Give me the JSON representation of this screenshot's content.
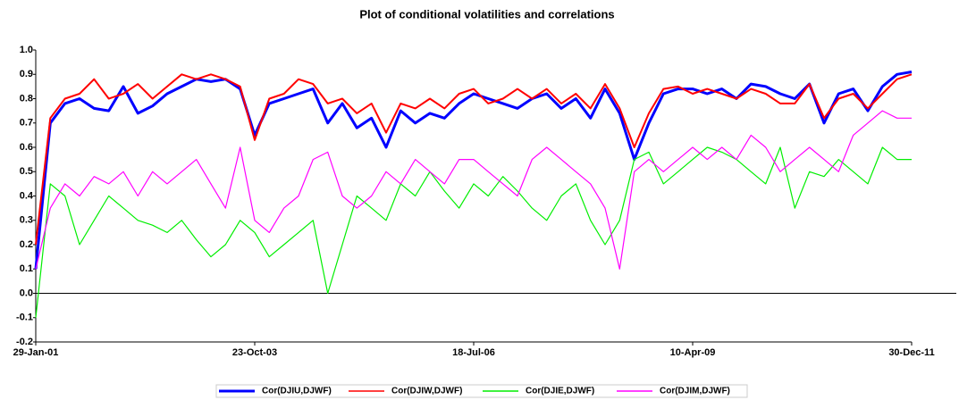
{
  "chart_data": {
    "type": "line",
    "title": "Plot of conditional volatilities and correlations",
    "x": [
      "29-Jan-01",
      null,
      null,
      null,
      null,
      null,
      null,
      null,
      null,
      null,
      null,
      null,
      null,
      null,
      null,
      "23-Oct-03",
      null,
      null,
      null,
      null,
      null,
      null,
      null,
      null,
      null,
      null,
      null,
      null,
      null,
      null,
      "18-Jul-06",
      null,
      null,
      null,
      null,
      null,
      null,
      null,
      null,
      null,
      null,
      null,
      null,
      null,
      null,
      "10-Apr-09",
      null,
      null,
      null,
      null,
      null,
      null,
      null,
      null,
      null,
      null,
      null,
      null,
      null,
      null,
      "30-Dec-11"
    ],
    "ylim": [
      -0.2,
      1.0
    ],
    "yticks": [
      -0.2,
      -0.1,
      {
        "value": 0,
        "label": "0.0"
      },
      0.1,
      0.2,
      0.3,
      0.4,
      0.5,
      0.6,
      0.7,
      0.8,
      0.9,
      {
        "value": 1,
        "label": "1.0"
      }
    ],
    "series": [
      {
        "name": "Cor(DJIU,DJWF)",
        "color": "#0000ff",
        "values": [
          0.1,
          0.7,
          0.78,
          0.8,
          0.76,
          0.75,
          0.85,
          0.74,
          0.77,
          0.82,
          0.85,
          0.88,
          0.87,
          0.88,
          0.84,
          0.65,
          0.78,
          0.8,
          0.82,
          0.84,
          0.7,
          0.78,
          0.68,
          0.72,
          0.6,
          0.75,
          0.7,
          0.74,
          0.72,
          0.78,
          0.82,
          0.8,
          0.78,
          0.76,
          0.8,
          0.82,
          0.76,
          0.8,
          0.72,
          0.84,
          0.74,
          0.55,
          0.7,
          0.82,
          0.84,
          0.84,
          0.82,
          0.84,
          0.8,
          0.86,
          0.85,
          0.82,
          0.8,
          0.86,
          0.7,
          0.82,
          0.84,
          0.75,
          0.85,
          0.9,
          0.91
        ]
      },
      {
        "name": "Cor(DJIW,DJWF)",
        "color": "#ff0000",
        "values": [
          0.2,
          0.72,
          0.8,
          0.82,
          0.88,
          0.8,
          0.82,
          0.86,
          0.8,
          0.85,
          0.9,
          0.88,
          0.9,
          0.88,
          0.85,
          0.63,
          0.8,
          0.82,
          0.88,
          0.86,
          0.78,
          0.8,
          0.74,
          0.78,
          0.66,
          0.78,
          0.76,
          0.8,
          0.76,
          0.82,
          0.84,
          0.78,
          0.8,
          0.84,
          0.8,
          0.84,
          0.78,
          0.82,
          0.76,
          0.86,
          0.76,
          0.6,
          0.74,
          0.84,
          0.85,
          0.82,
          0.84,
          0.82,
          0.8,
          0.84,
          0.82,
          0.78,
          0.78,
          0.86,
          0.72,
          0.8,
          0.82,
          0.76,
          0.82,
          0.88,
          0.9
        ]
      },
      {
        "name": "Cor(DJIE,DJWF)",
        "color": "#00ee00",
        "values": [
          -0.1,
          0.45,
          0.4,
          0.2,
          0.3,
          0.4,
          0.35,
          0.3,
          0.28,
          0.25,
          0.3,
          0.22,
          0.15,
          0.2,
          0.3,
          0.25,
          0.15,
          0.2,
          0.25,
          0.3,
          0.0,
          0.2,
          0.4,
          0.35,
          0.3,
          0.45,
          0.4,
          0.5,
          0.42,
          0.35,
          0.45,
          0.4,
          0.48,
          0.42,
          0.35,
          0.3,
          0.4,
          0.45,
          0.3,
          0.2,
          0.3,
          0.55,
          0.58,
          0.45,
          0.5,
          0.55,
          0.6,
          0.58,
          0.55,
          0.5,
          0.45,
          0.6,
          0.35,
          0.5,
          0.48,
          0.55,
          0.5,
          0.45,
          0.6,
          0.55,
          0.55
        ]
      },
      {
        "name": "Cor(DJIM,DJWF)",
        "color": "#ff00ff",
        "values": [
          0.1,
          0.35,
          0.45,
          0.4,
          0.48,
          0.45,
          0.5,
          0.4,
          0.5,
          0.45,
          0.5,
          0.55,
          0.45,
          0.35,
          0.6,
          0.3,
          0.25,
          0.35,
          0.4,
          0.55,
          0.58,
          0.4,
          0.35,
          0.4,
          0.5,
          0.45,
          0.55,
          0.5,
          0.45,
          0.55,
          0.55,
          0.5,
          0.45,
          0.4,
          0.55,
          0.6,
          0.55,
          0.5,
          0.45,
          0.35,
          0.1,
          0.5,
          0.55,
          0.5,
          0.55,
          0.6,
          0.55,
          0.6,
          0.55,
          0.65,
          0.6,
          0.5,
          0.55,
          0.6,
          0.55,
          0.5,
          0.65,
          0.7,
          0.75,
          0.72,
          0.72
        ]
      }
    ]
  }
}
